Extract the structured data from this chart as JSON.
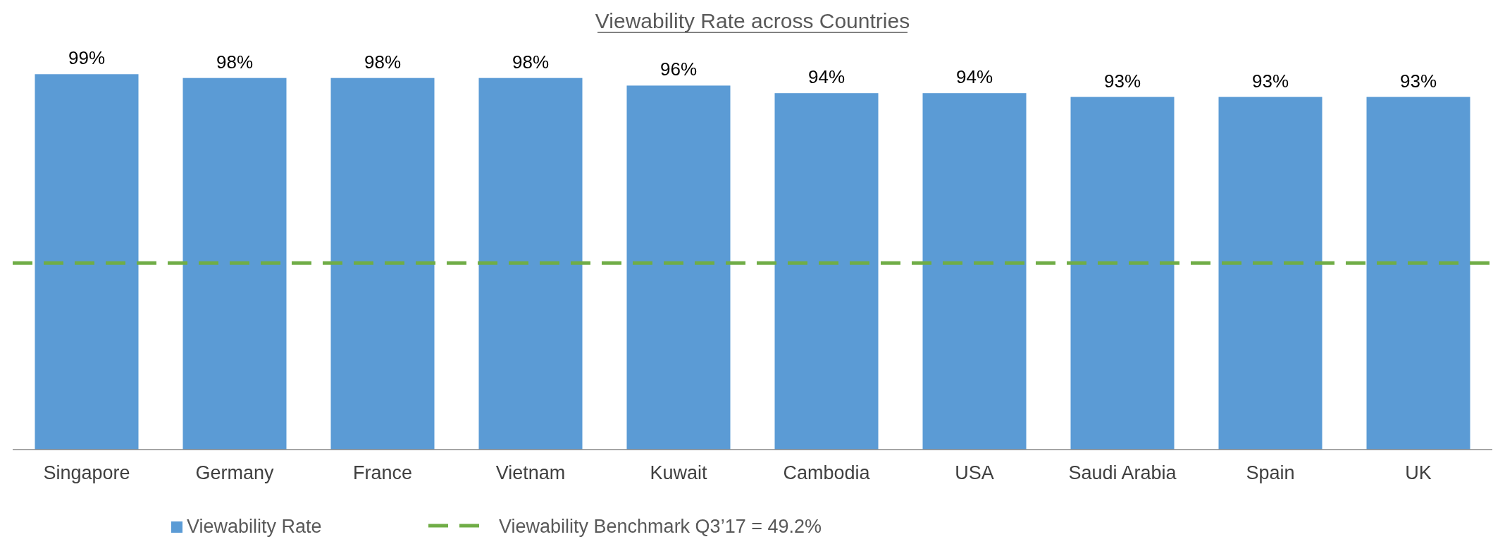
{
  "chart_data": {
    "type": "bar",
    "title": "Viewability Rate across Countries",
    "categories": [
      "Singapore",
      "Germany",
      "France",
      "Vietnam",
      "Kuwait",
      "Cambodia",
      "USA",
      "Saudi Arabia",
      "Spain",
      "UK"
    ],
    "series": [
      {
        "name": "Viewability Rate",
        "color": "#5b9bd5",
        "values": [
          99,
          98,
          98,
          98,
          96,
          94,
          94,
          93,
          93,
          93
        ],
        "value_labels": [
          "99%",
          "98%",
          "98%",
          "98%",
          "96%",
          "94%",
          "94%",
          "93%",
          "93%",
          "93%"
        ]
      }
    ],
    "ref_lines": [
      {
        "axis": "y",
        "value": 49.2,
        "label": "Viewability Benchmark Q3’17 = 49.2%",
        "color": "#70ad47",
        "line_style": "dashed"
      }
    ],
    "legend": "bottom left",
    "tick_labels": "x"
  }
}
